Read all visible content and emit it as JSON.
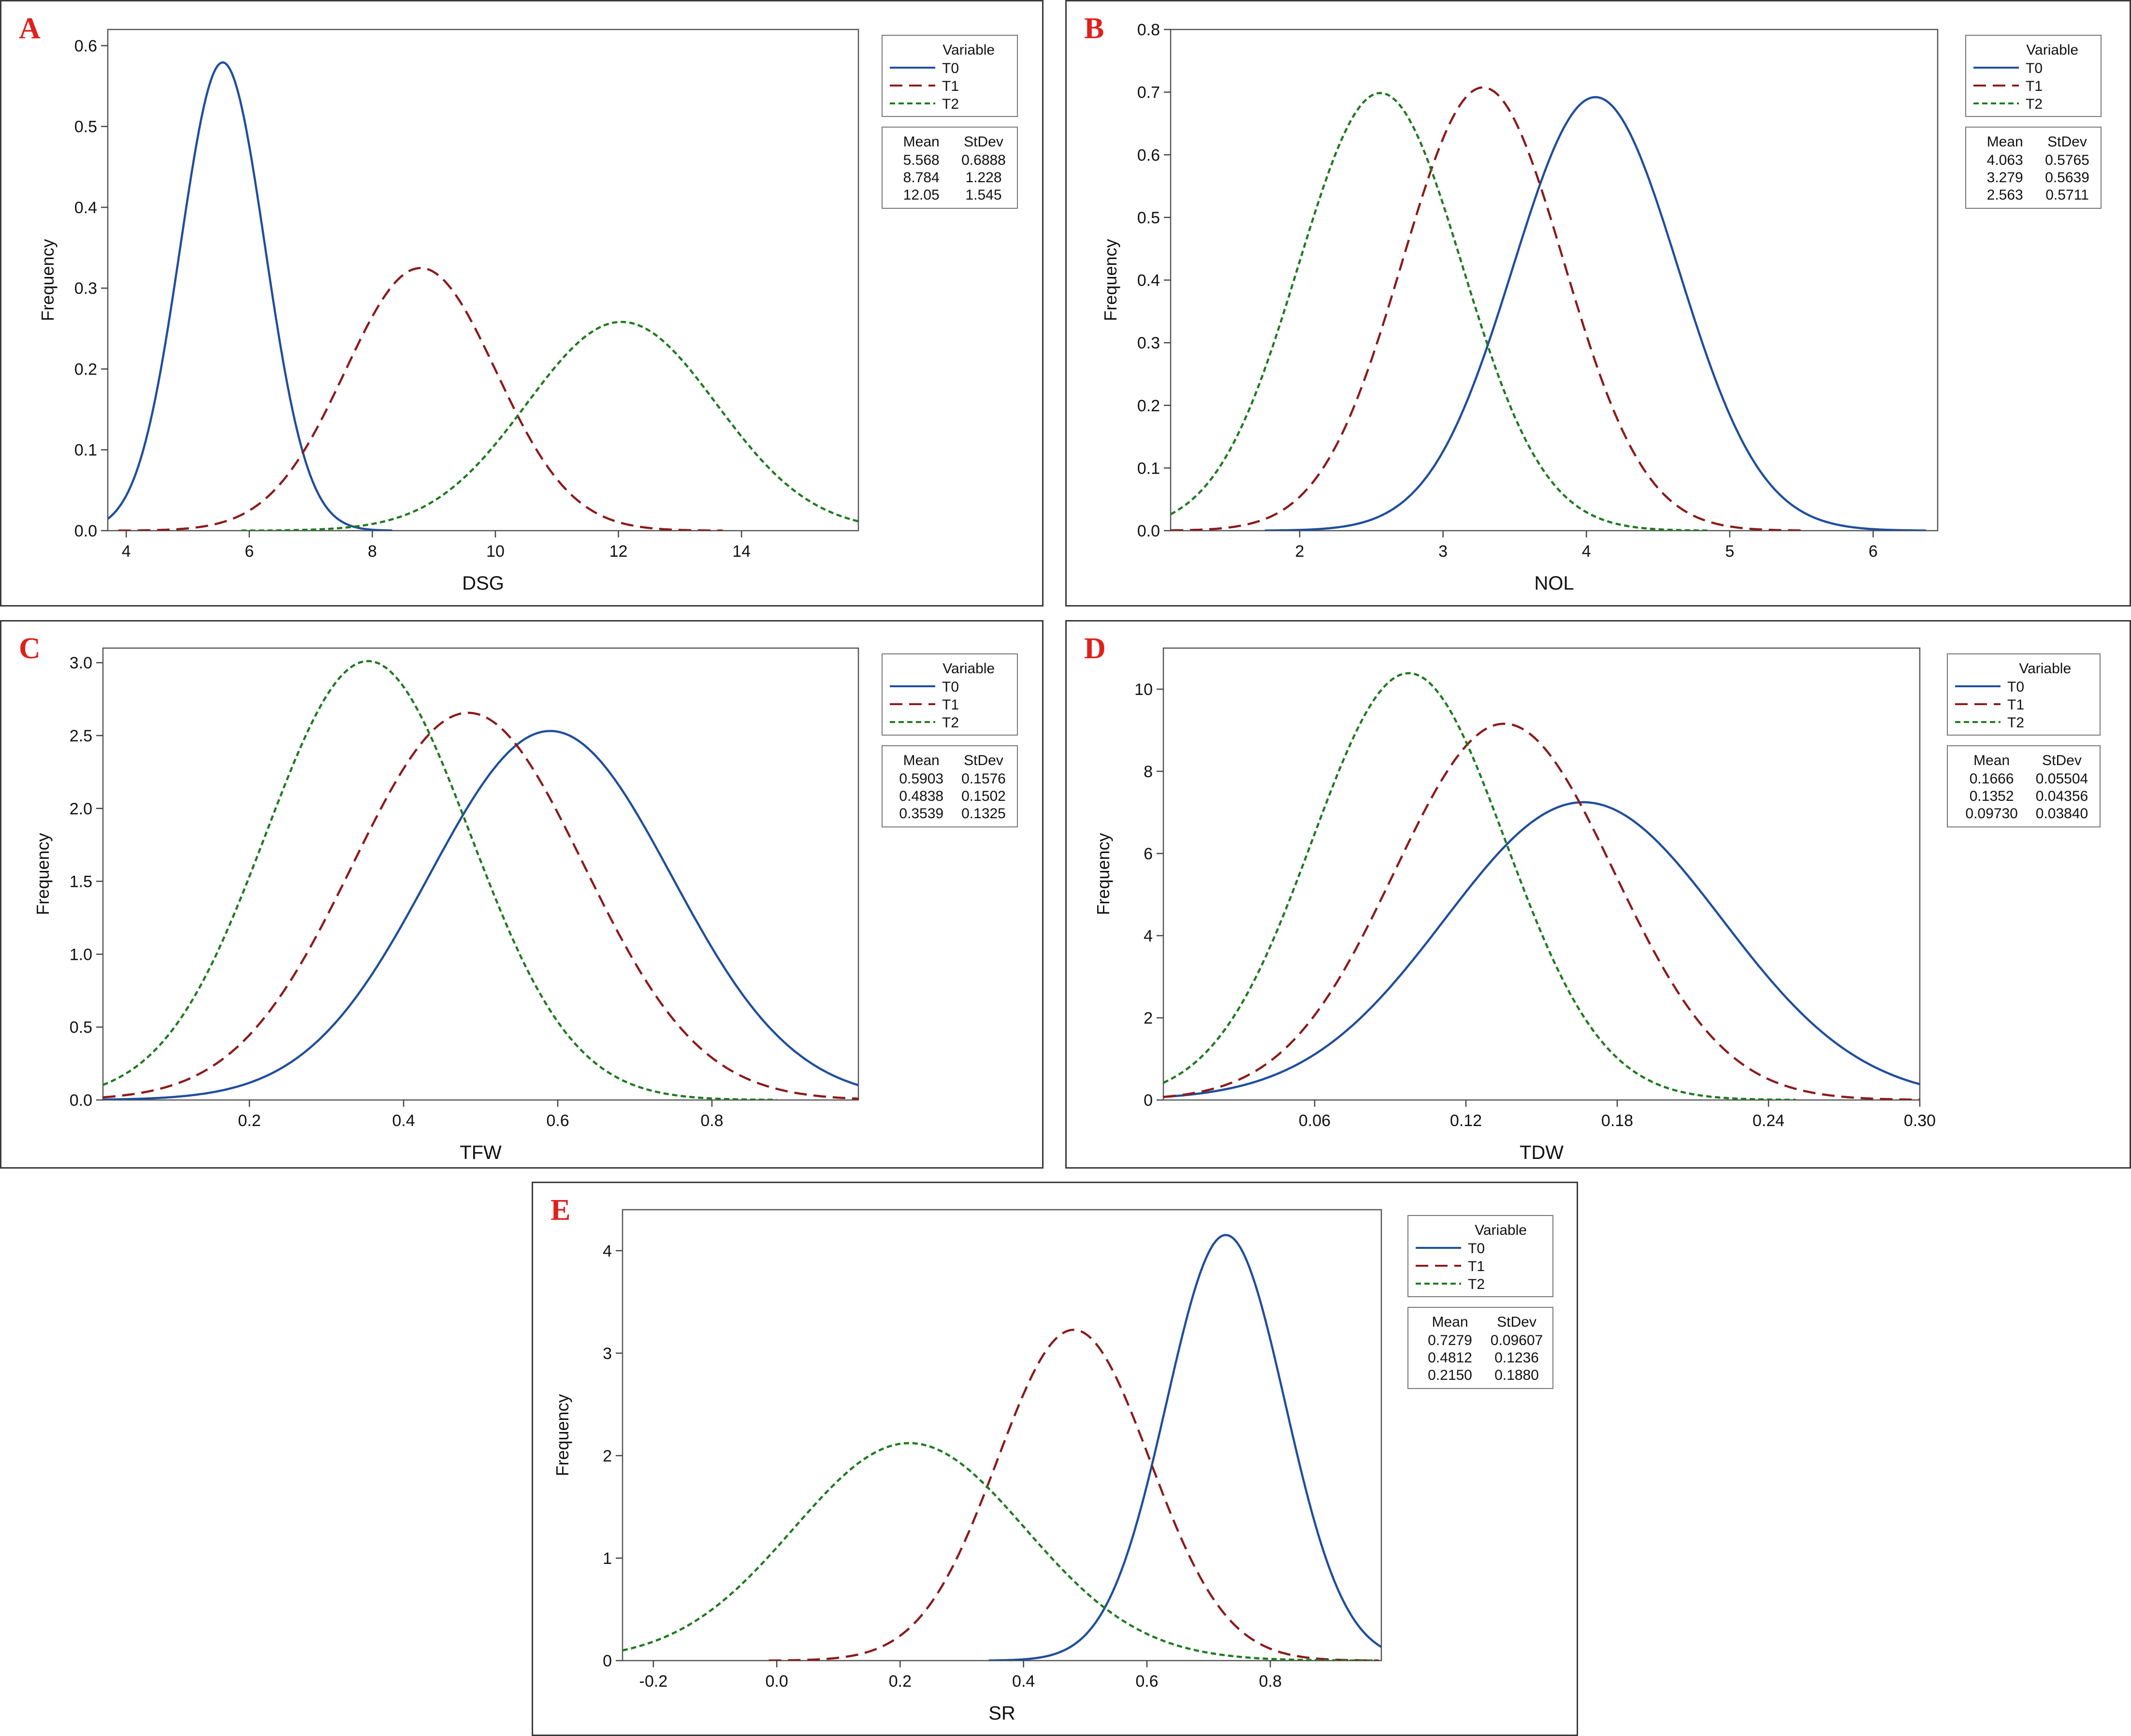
{
  "colors": {
    "T0": "#1f4e9c",
    "T1": "#8b1a1a",
    "T2": "#1f7a1f",
    "panel_letter": "#e0201b",
    "frame": "#3a3a3a"
  },
  "chart_data": [
    {
      "panel": "A",
      "type": "line",
      "xlabel": "DSG",
      "ylabel": "Frequency",
      "xlim": [
        3.7,
        15.9
      ],
      "ylim": [
        0,
        0.62
      ],
      "xticks": [
        4,
        6,
        8,
        10,
        12,
        14
      ],
      "yticks": [
        0.0,
        0.1,
        0.2,
        0.3,
        0.4,
        0.5,
        0.6
      ],
      "legend_title": "Variable",
      "legend_position": "right",
      "table_headers": [
        "Mean",
        "StDev"
      ],
      "series": [
        {
          "name": "T0",
          "mean": 5.568,
          "stdev": 0.6888,
          "mean_label": "5.568",
          "stdev_label": "0.6888",
          "color": "#1f4e9c",
          "dash": "solid"
        },
        {
          "name": "T1",
          "mean": 8.784,
          "stdev": 1.228,
          "mean_label": "8.784",
          "stdev_label": "1.228",
          "color": "#8b1a1a",
          "dash": "long"
        },
        {
          "name": "T2",
          "mean": 12.05,
          "stdev": 1.545,
          "mean_label": "12.05",
          "stdev_label": "1.545",
          "color": "#1f7a1f",
          "dash": "short"
        }
      ]
    },
    {
      "panel": "B",
      "type": "line",
      "xlabel": "NOL",
      "ylabel": "Frequency",
      "xlim": [
        1.1,
        6.45
      ],
      "ylim": [
        0,
        0.8
      ],
      "xticks": [
        2,
        3,
        4,
        5,
        6
      ],
      "yticks": [
        0.0,
        0.1,
        0.2,
        0.3,
        0.4,
        0.5,
        0.6,
        0.7,
        0.8
      ],
      "legend_title": "Variable",
      "legend_position": "right",
      "table_headers": [
        "Mean",
        "StDev"
      ],
      "series": [
        {
          "name": "T0",
          "mean": 4.063,
          "stdev": 0.5765,
          "mean_label": "4.063",
          "stdev_label": "0.5765",
          "color": "#1f4e9c",
          "dash": "solid"
        },
        {
          "name": "T1",
          "mean": 3.279,
          "stdev": 0.5639,
          "mean_label": "3.279",
          "stdev_label": "0.5639",
          "color": "#8b1a1a",
          "dash": "long"
        },
        {
          "name": "T2",
          "mean": 2.563,
          "stdev": 0.5711,
          "mean_label": "2.563",
          "stdev_label": "0.5711",
          "color": "#1f7a1f",
          "dash": "short"
        }
      ]
    },
    {
      "panel": "C",
      "type": "line",
      "xlabel": "TFW",
      "ylabel": "Frequency",
      "xlim": [
        0.01,
        0.99
      ],
      "ylim": [
        0,
        3.1
      ],
      "xticks": [
        0.2,
        0.4,
        0.6,
        0.8
      ],
      "yticks": [
        0.0,
        0.5,
        1.0,
        1.5,
        2.0,
        2.5,
        3.0
      ],
      "legend_title": "Variable",
      "legend_position": "right",
      "table_headers": [
        "Mean",
        "StDev"
      ],
      "series": [
        {
          "name": "T0",
          "mean": 0.5903,
          "stdev": 0.1576,
          "mean_label": "0.5903",
          "stdev_label": "0.1576",
          "color": "#1f4e9c",
          "dash": "solid"
        },
        {
          "name": "T1",
          "mean": 0.4838,
          "stdev": 0.1502,
          "mean_label": "0.4838",
          "stdev_label": "0.1502",
          "color": "#8b1a1a",
          "dash": "long"
        },
        {
          "name": "T2",
          "mean": 0.3539,
          "stdev": 0.1325,
          "mean_label": "0.3539",
          "stdev_label": "0.1325",
          "color": "#1f7a1f",
          "dash": "short"
        }
      ]
    },
    {
      "panel": "D",
      "type": "line",
      "xlabel": "TDW",
      "ylabel": "Frequency",
      "xlim": [
        0.0,
        0.3
      ],
      "ylim": [
        0,
        11
      ],
      "xticks": [
        0.06,
        0.12,
        0.18,
        0.24,
        0.3
      ],
      "yticks": [
        0,
        2,
        4,
        6,
        8,
        10
      ],
      "legend_title": "Variable",
      "legend_position": "right",
      "table_headers": [
        "Mean",
        "StDev"
      ],
      "series": [
        {
          "name": "T0",
          "mean": 0.1666,
          "stdev": 0.05504,
          "mean_label": "0.1666",
          "stdev_label": "0.05504",
          "color": "#1f4e9c",
          "dash": "solid"
        },
        {
          "name": "T1",
          "mean": 0.1352,
          "stdev": 0.04356,
          "mean_label": "0.1352",
          "stdev_label": "0.04356",
          "color": "#8b1a1a",
          "dash": "long"
        },
        {
          "name": "T2",
          "mean": 0.0973,
          "stdev": 0.0384,
          "mean_label": "0.09730",
          "stdev_label": "0.03840",
          "color": "#1f7a1f",
          "dash": "short"
        }
      ]
    },
    {
      "panel": "E",
      "type": "line",
      "xlabel": "SR",
      "ylabel": "Frequency",
      "xlim": [
        -0.25,
        0.98
      ],
      "ylim": [
        0,
        4.4
      ],
      "xticks": [
        -0.2,
        0.0,
        0.2,
        0.4,
        0.6,
        0.8
      ],
      "yticks": [
        0,
        1,
        2,
        3,
        4
      ],
      "legend_title": "Variable",
      "legend_position": "right",
      "table_headers": [
        "Mean",
        "StDev"
      ],
      "series": [
        {
          "name": "T0",
          "mean": 0.7279,
          "stdev": 0.09607,
          "mean_label": "0.7279",
          "stdev_label": "0.09607",
          "color": "#1f4e9c",
          "dash": "solid"
        },
        {
          "name": "T1",
          "mean": 0.4812,
          "stdev": 0.1236,
          "mean_label": "0.4812",
          "stdev_label": "0.1236",
          "color": "#8b1a1a",
          "dash": "long"
        },
        {
          "name": "T2",
          "mean": 0.215,
          "stdev": 0.188,
          "mean_label": "0.2150",
          "stdev_label": "0.1880",
          "color": "#1f7a1f",
          "dash": "short"
        }
      ]
    }
  ]
}
